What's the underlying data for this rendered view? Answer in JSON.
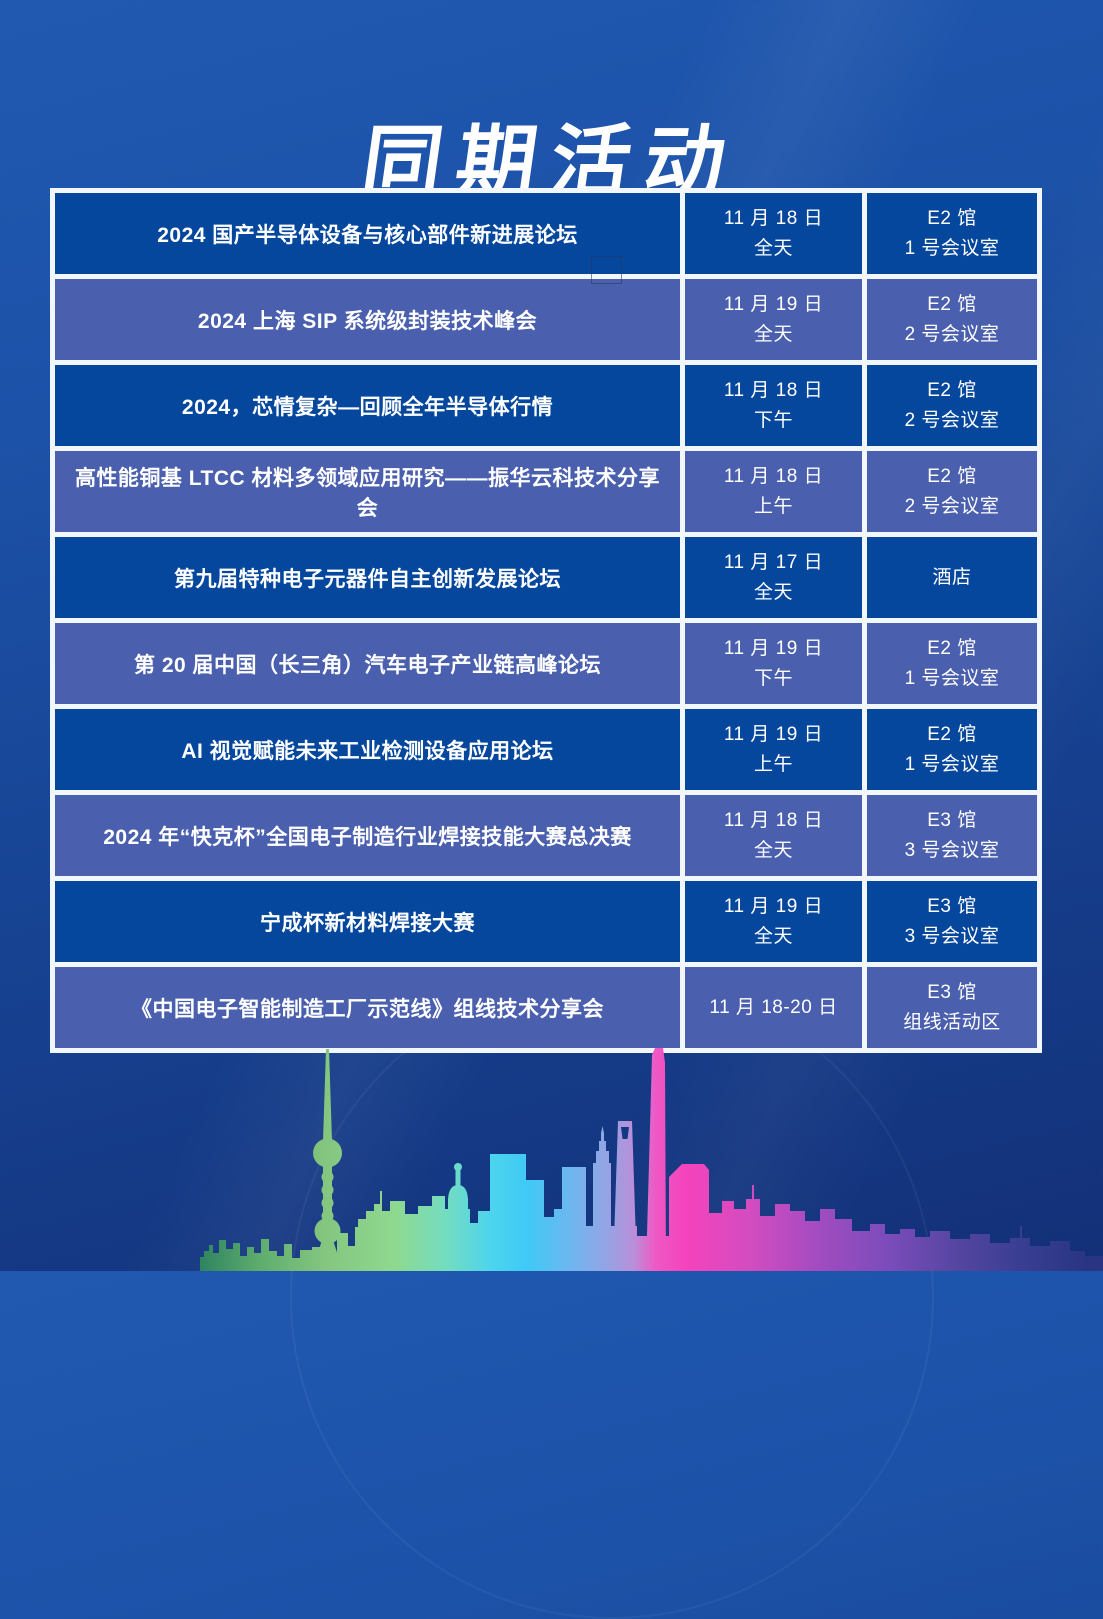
{
  "page": {
    "title": "同期活动"
  },
  "table": {
    "rows": [
      {
        "event": "2024 国产半导体设备与核心部件新进展论坛",
        "date": [
          "11 月 18 日",
          "全天"
        ],
        "venue": [
          "E2 馆",
          "1 号会议室"
        ]
      },
      {
        "event": "2024 上海 SIP 系统级封装技术峰会",
        "date": [
          "11 月 19 日",
          "全天"
        ],
        "venue": [
          "E2 馆",
          "2 号会议室"
        ]
      },
      {
        "event": "2024，芯情复杂—回顾全年半导体行情",
        "date": [
          "11 月 18 日",
          "下午"
        ],
        "venue": [
          "E2 馆",
          "2 号会议室"
        ]
      },
      {
        "event": "高性能铜基 LTCC 材料多领域应用研究——振华云科技术分享会",
        "date": [
          "11 月 18 日",
          "上午"
        ],
        "venue": [
          "E2 馆",
          "2 号会议室"
        ]
      },
      {
        "event": "第九届特种电子元器件自主创新发展论坛",
        "date": [
          "11 月 17 日",
          "全天"
        ],
        "venue": [
          "酒店"
        ]
      },
      {
        "event": "第 20 届中国（长三角）汽车电子产业链高峰论坛",
        "date": [
          "11 月 19 日",
          "下午"
        ],
        "venue": [
          "E2 馆",
          "1 号会议室"
        ]
      },
      {
        "event": "AI 视觉赋能未来工业检测设备应用论坛",
        "date": [
          "11 月 19 日",
          "上午"
        ],
        "venue": [
          "E2 馆",
          "1 号会议室"
        ]
      },
      {
        "event": "2024 年“快克杯”全国电子制造行业焊接技能大赛总决赛",
        "date": [
          "11 月 18 日",
          "全天"
        ],
        "venue": [
          "E3 馆",
          "3 号会议室"
        ]
      },
      {
        "event": "宁成杯新材料焊接大赛",
        "date": [
          "11 月 19 日",
          "全天"
        ],
        "venue": [
          "E3 馆",
          "3 号会议室"
        ]
      },
      {
        "event": "《中国电子智能制造工厂示范线》组线技术分享会",
        "date": [
          "11 月 18-20 日"
        ],
        "venue": [
          "E3 馆",
          "组线活动区"
        ]
      }
    ]
  },
  "colors": {
    "row_odd": "#05479d",
    "row_even": "#4a5fae",
    "table_grid": "#f2f7fb",
    "text": "#ffffff",
    "background_top": "#2159b1",
    "background_bottom": "#133078",
    "skyline_green": "#84c57f",
    "skyline_cyan": "#3fc9f6",
    "skyline_pink": "#f443bc",
    "skyline_purple": "#7a4cba"
  }
}
